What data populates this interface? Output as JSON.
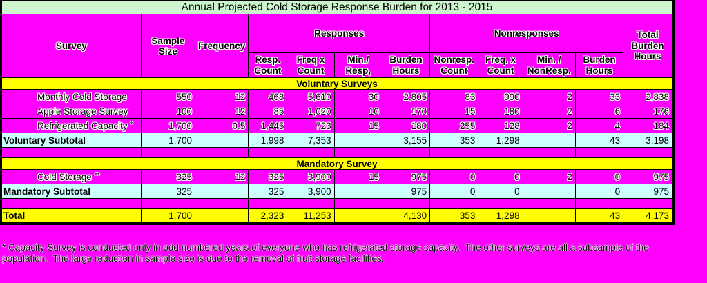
{
  "title": "Annual Projected Cold Storage Response Burden for 2013 - 2015",
  "colors": {
    "page_background": "#FF00FF",
    "title_bar": "#CDF5CD",
    "section_bar": "#FFFF00",
    "subtotal_row": "#CCFFFF",
    "total_row": "#FFFF00",
    "grid_border": "#000000",
    "text": "#000000",
    "text_halo": "#FFFFFF"
  },
  "header": {
    "survey": "Survey",
    "sample_size": "Sample Size",
    "frequency": "Frequency",
    "responses": "Responses",
    "nonresponses": "Nonresponses",
    "total_burden": "Total\nBurden\nHours",
    "subcols": [
      "Resp.\nCount",
      "Freq x\nCount",
      "Min./\nResp,",
      "Burden\nHours",
      "Nonresp.\nCount",
      "Freq. x\nCount",
      "Min. /\nNonResp.",
      "Burden\nHours"
    ]
  },
  "rows": [
    {
      "type": "section",
      "label": "Voluntary Surveys"
    },
    {
      "type": "data",
      "label": "Monthly Cold Storage",
      "sup": "",
      "values": [
        "550",
        "12",
        "468",
        "5,610",
        "30",
        "2,805",
        "83",
        "990",
        "2",
        "33",
        "2,838"
      ]
    },
    {
      "type": "data",
      "label": "Apple Storage Survey",
      "sup": "",
      "values": [
        "100",
        "12",
        "85",
        "1,020",
        "10",
        "170",
        "15",
        "180",
        "2",
        "6",
        "176"
      ]
    },
    {
      "type": "data",
      "label": "Refrigerated Capacity",
      "sup": "*",
      "values": [
        "1,700",
        "0.5",
        "1,445",
        "723",
        "15",
        "180",
        "255",
        "128",
        "2",
        "4",
        "184"
      ]
    },
    {
      "type": "subtotal",
      "label": "Voluntary Subtotal",
      "sup": "",
      "values": [
        "1,700",
        "",
        "1,998",
        "7,353",
        "",
        "3,155",
        "353",
        "1,298",
        "",
        "43",
        "3,198"
      ]
    },
    {
      "type": "blank"
    },
    {
      "type": "section",
      "label": "Mandatory Survey"
    },
    {
      "type": "data",
      "label": "Cold Storage",
      "sup": "**",
      "values": [
        "325",
        "12",
        "325",
        "3,900",
        "15",
        "975",
        "0",
        "0",
        "2",
        "0",
        "975"
      ]
    },
    {
      "type": "subtotal",
      "label": "Mandatory Subtotal",
      "sup": "",
      "values": [
        "325",
        "",
        "325",
        "3,900",
        "",
        "975",
        "0",
        "0",
        "",
        "0",
        "975"
      ]
    },
    {
      "type": "blank"
    },
    {
      "type": "total",
      "label": "Total",
      "sup": "",
      "values": [
        "1,700",
        "",
        "2,323",
        "11,253",
        "",
        "4,130",
        "353",
        "1,298",
        "",
        "43",
        "4,173"
      ]
    }
  ],
  "footnote": [
    "* Capacity Survey is conducted only in odd numbered years of everyone who has refrigerated storage capacity.  The other surveys are all a subsample of the",
    "population.  The large reduction in sample size is due to the removal of fruit storage facilities."
  ]
}
